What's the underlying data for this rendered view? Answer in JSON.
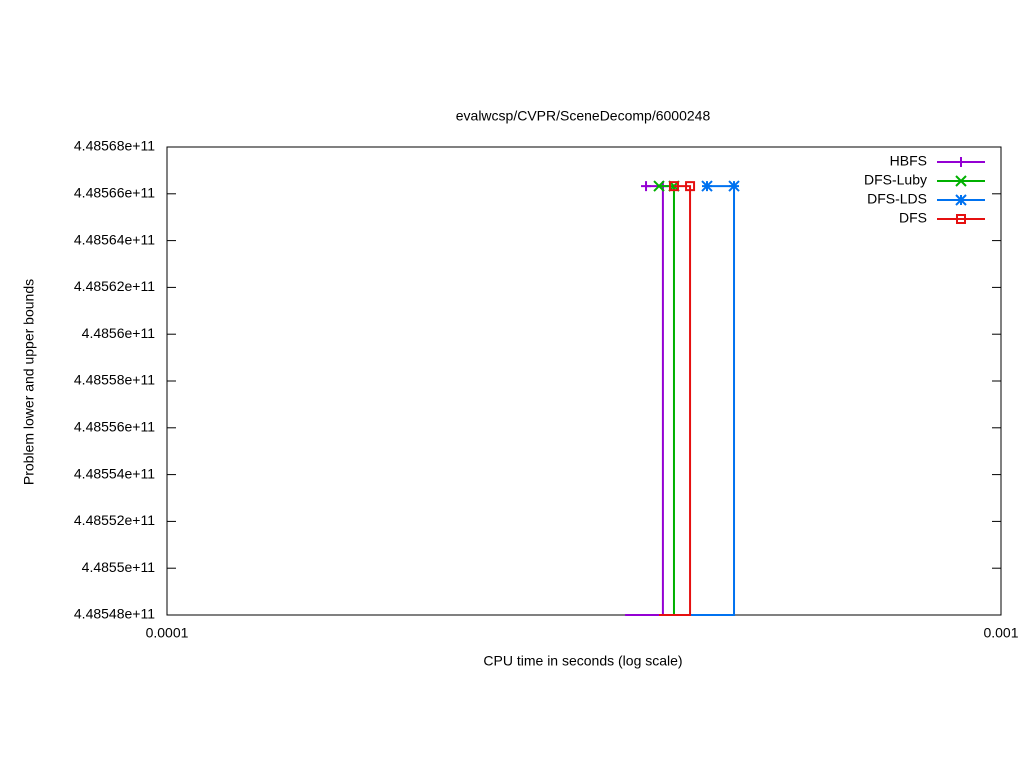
{
  "chart_data": {
    "type": "step",
    "title": "evalwcsp/CVPR/SceneDecomp/6000248",
    "xlabel": "CPU time in seconds (log scale)",
    "ylabel": "Problem lower and upper bounds",
    "xlog": true,
    "xlim": [
      0.0001,
      0.001
    ],
    "xticks": [
      0.0001,
      0.001
    ],
    "ylim": [
      448548000000,
      448568000000
    ],
    "yticks": [
      {
        "value": 448548000000,
        "label": "4.48548e+11"
      },
      {
        "value": 448550000000,
        "label": "4.4855e+11"
      },
      {
        "value": 448552000000,
        "label": "4.48552e+11"
      },
      {
        "value": 448554000000,
        "label": "4.48554e+11"
      },
      {
        "value": 448556000000,
        "label": "4.48556e+11"
      },
      {
        "value": 448558000000,
        "label": "4.48558e+11"
      },
      {
        "value": 448560000000,
        "label": "4.4856e+11"
      },
      {
        "value": 448562000000,
        "label": "4.48562e+11"
      },
      {
        "value": 448564000000,
        "label": "4.48564e+11"
      },
      {
        "value": 448566000000,
        "label": "4.48566e+11"
      },
      {
        "value": 448568000000,
        "label": "4.48568e+11"
      }
    ],
    "legend": "top-right",
    "series": [
      {
        "name": "HBFS",
        "color": "#9400d3",
        "marker": "plus",
        "x": [
          0.0003542,
          0.0003932,
          0.0003932,
          0.0003753
        ],
        "values": [
          448548000000,
          448548000000,
          448566330000,
          448566330000
        ]
      },
      {
        "name": "DFS-Luby",
        "color": "#00b000",
        "marker": "cross",
        "x": [
          0.000389,
          0.0004054,
          0.0004054,
          0.000389
        ],
        "values": [
          448548000000,
          448548000000,
          448566330000,
          448566330000
        ]
      },
      {
        "name": "DFS-LDS",
        "color": "#0072f0",
        "marker": "star",
        "x": [
          0.0004238,
          0.0004785,
          0.0004785,
          0.0004441
        ],
        "values": [
          448548000000,
          448548000000,
          448566330000,
          448566330000
        ]
      },
      {
        "name": "DFS",
        "color": "#e51010",
        "marker": "square",
        "x": [
          0.000389,
          0.0004238,
          0.0004238,
          0.0004054
        ],
        "values": [
          448548000000,
          448548000000,
          448566330000,
          448566330000
        ]
      }
    ]
  }
}
